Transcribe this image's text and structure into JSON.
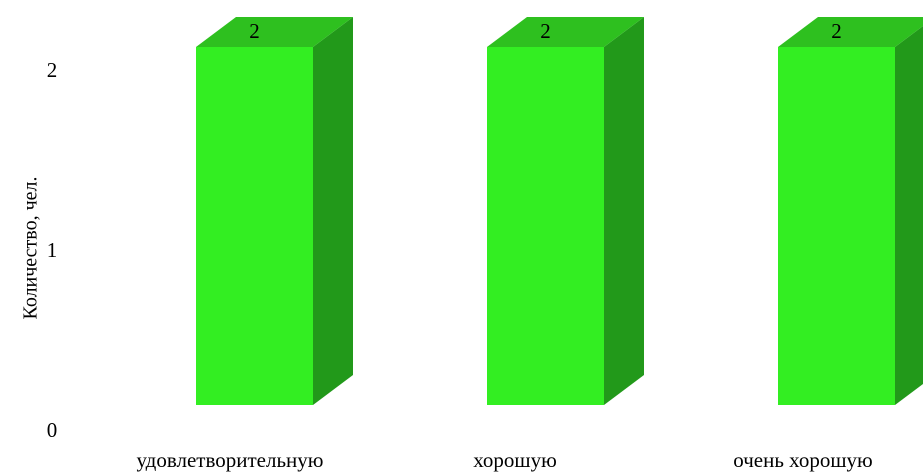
{
  "chart_data": {
    "type": "bar",
    "title": "",
    "xlabel": "",
    "ylabel": "Количество, чел.",
    "categories": [
      "удовлетворительную",
      "хорошую",
      "очень хорошую"
    ],
    "values": [
      2,
      2,
      2
    ],
    "data_labels": [
      "2",
      "2",
      "2"
    ],
    "yticks": [
      "0",
      "1",
      "2"
    ],
    "ylim": [
      0,
      2.2
    ],
    "grid": false,
    "legend": "none",
    "style": "3d-column",
    "colors": {
      "front": "#33ee22",
      "top": "#2ec01f",
      "side": "#22991a"
    }
  }
}
